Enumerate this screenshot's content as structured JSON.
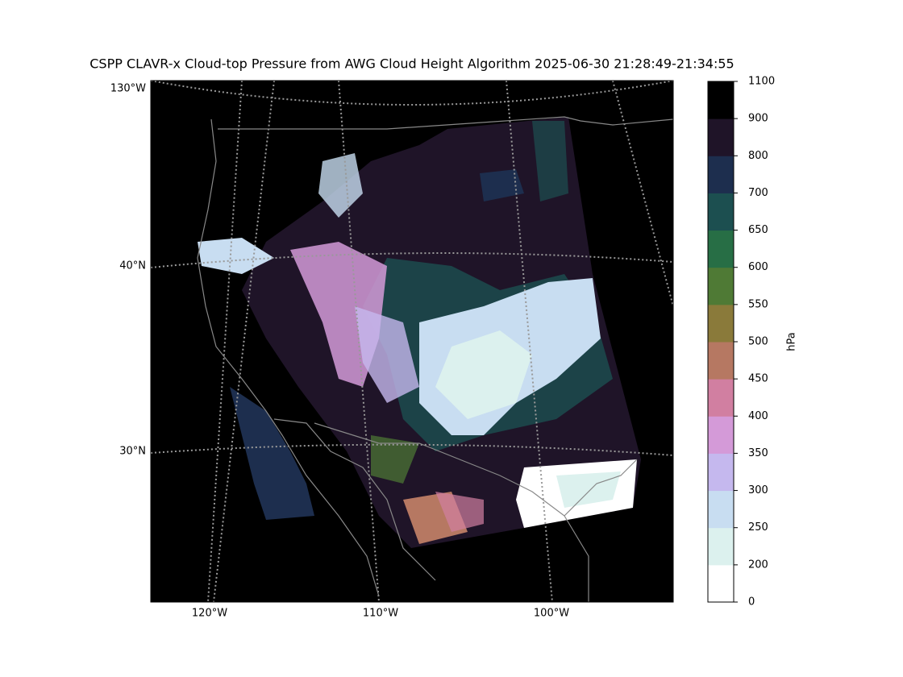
{
  "title": "CSPP CLAVR-x Cloud-top Pressure from AWG Cloud Height Algorithm 2025-06-30 21:28:49-21:34:55",
  "map": {
    "lat_labels": [
      "130°W",
      "40°N",
      "30°N"
    ],
    "lon_labels": [
      "120°W",
      "110°W",
      "100°W"
    ]
  },
  "colorbar": {
    "label": "hPa",
    "ticks": [
      0,
      200,
      250,
      300,
      350,
      400,
      450,
      500,
      550,
      600,
      650,
      700,
      800,
      900,
      1100
    ],
    "colors": [
      "#ffffff",
      "#dcf1ee",
      "#c8ddf1",
      "#c5b8ee",
      "#d49ad8",
      "#d17fa1",
      "#b67862",
      "#8a7a3a",
      "#4f7a35",
      "#276e45",
      "#1c4f50",
      "#1d2e4e",
      "#1f1428",
      "#000000"
    ]
  }
}
